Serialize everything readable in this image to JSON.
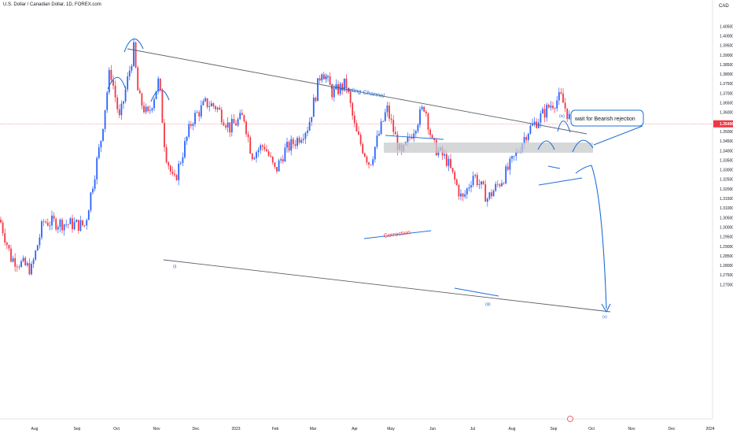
{
  "header": {
    "symbol_title": "U.S. Dollar / Canadian Dollar, 1D, FOREX.com",
    "currency": "CAD"
  },
  "price_axis": {
    "ticks": [
      "1.40500",
      "1.40000",
      "1.39500",
      "1.39000",
      "1.38500",
      "1.38000",
      "1.37500",
      "1.37000",
      "1.36500",
      "1.36000",
      "1.35500",
      "1.35000",
      "1.34500",
      "1.34000",
      "1.33500",
      "1.33000",
      "1.32500",
      "1.32000",
      "1.31500",
      "1.31000",
      "1.30500",
      "1.30000",
      "1.29500",
      "1.29000",
      "1.28500",
      "1.28000",
      "1.27500",
      "1.27000"
    ],
    "current_price": "1.35406"
  },
  "time_axis": {
    "ticks": [
      "Aug",
      "Sep",
      "Oct",
      "Nov",
      "Dec",
      "2023",
      "Feb",
      "Mar",
      "Apr",
      "May",
      "Jun",
      "Jul",
      "Aug",
      "Sep",
      "Oct",
      "Nov",
      "Dec",
      "2024"
    ]
  },
  "annotations": {
    "channel_label": "Descending Channel",
    "correction_label": "Correction",
    "callout": "wait for Bearish rejection",
    "wave_i": "(i)",
    "wave_ii": "(ii)",
    "wave_iii": "(iii)",
    "wave_iv": "(iv)",
    "wave_v": "(v)"
  },
  "colors": {
    "up": "#2962ff",
    "down": "#f23645",
    "drawing": "#1e6fd9",
    "line": "#5d606b",
    "zone": "#c8c9cc",
    "price_line": "#f23645"
  },
  "icons": {
    "event_marker": "earnings-marker-icon"
  },
  "chart_data": {
    "type": "candlestick",
    "symbol": "U.S. Dollar / Canadian Dollar",
    "timeframe": "1D",
    "y_axis": {
      "ylim": [
        1.268,
        1.416
      ]
    },
    "last_price": 1.35406,
    "swing_points": [
      {
        "date": "2022-08",
        "price": 1.284
      },
      {
        "date": "2022-10-13",
        "price": 1.3977
      },
      {
        "date": "2022-11-15",
        "price": 1.3225
      },
      {
        "date": "2023-03-10",
        "price": 1.3862
      },
      {
        "date": "2023-04-14",
        "price": 1.331
      },
      {
        "date": "2023-05-26",
        "price": 1.3655
      },
      {
        "date": "2023-07-14",
        "price": 1.3092
      },
      {
        "date": "2023-09-07",
        "price": 1.369
      },
      {
        "date": "2023-09-15",
        "price": 1.35
      }
    ]
  }
}
